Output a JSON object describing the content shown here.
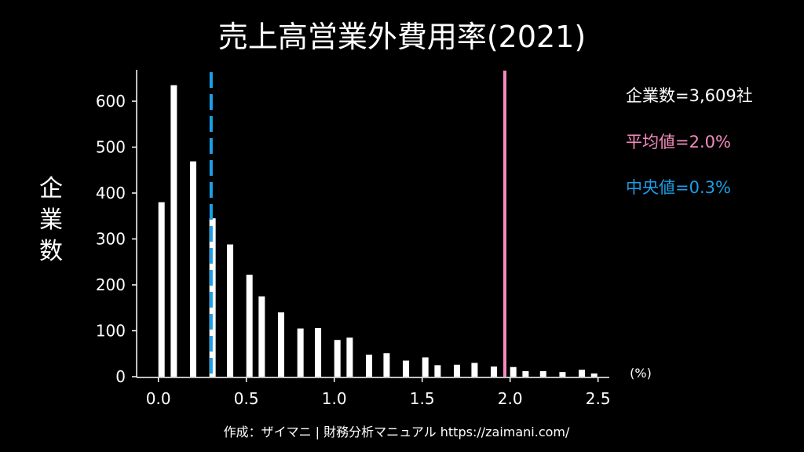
{
  "chart_data": {
    "type": "bar",
    "title": "売上高営業外費用率(2021)",
    "xlabel": "(%)",
    "ylabel": "企業数",
    "xlim": [
      -0.13,
      2.6
    ],
    "ylim": [
      0,
      667
    ],
    "xticks": [
      "0.0",
      "0.5",
      "1.0",
      "1.5",
      "2.0",
      "2.5"
    ],
    "xtick_values": [
      0,
      0.5,
      1.0,
      1.5,
      2.0,
      2.5
    ],
    "yticks": [
      "0",
      "100",
      "200",
      "300",
      "400",
      "500",
      "600"
    ],
    "ytick_values": [
      0,
      100,
      200,
      300,
      400,
      500,
      600
    ],
    "grid": false,
    "bars": {
      "x": [
        0.0,
        0.07,
        0.18,
        0.29,
        0.39,
        0.5,
        0.57,
        0.68,
        0.79,
        0.89,
        1.0,
        1.07,
        1.18,
        1.28,
        1.39,
        1.5,
        1.57,
        1.68,
        1.78,
        1.89,
        2.0,
        2.07,
        2.17,
        2.28,
        2.39,
        2.46
      ],
      "values": [
        380,
        635,
        469,
        345,
        288,
        222,
        175,
        140,
        105,
        106,
        80,
        85,
        48,
        51,
        35,
        42,
        25,
        26,
        30,
        22,
        21,
        12,
        12,
        10,
        15,
        7
      ]
    },
    "mean": {
      "value": 1.97,
      "label": "平均値=2.0%",
      "color": "#f58bbd"
    },
    "median": {
      "value": 0.3,
      "label": "中央値=0.3%",
      "color": "#1a9ee8"
    },
    "count_label": "企業数=3,609社",
    "legend_placement": "top-right"
  },
  "footer": "作成：ザイマニ | 財務分析マニュアル https://zaimani.com/"
}
